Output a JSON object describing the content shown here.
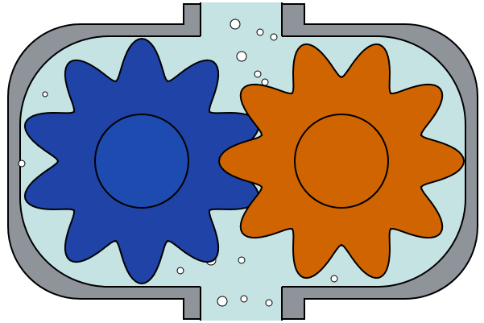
{
  "diagram": {
    "gears": [
      {
        "name": "left-gear",
        "teeth": 10,
        "color": "#1f43a6",
        "hub_color": "#1e4bb0"
      },
      {
        "name": "right-gear",
        "teeth": 10,
        "color": "#cf6400",
        "hub_color": "#d06400"
      }
    ],
    "colors": {
      "housing": "#8f939a",
      "fluid": "#c6e3e4",
      "bubble_fill": "#ffffff",
      "outline": "#000000"
    }
  }
}
